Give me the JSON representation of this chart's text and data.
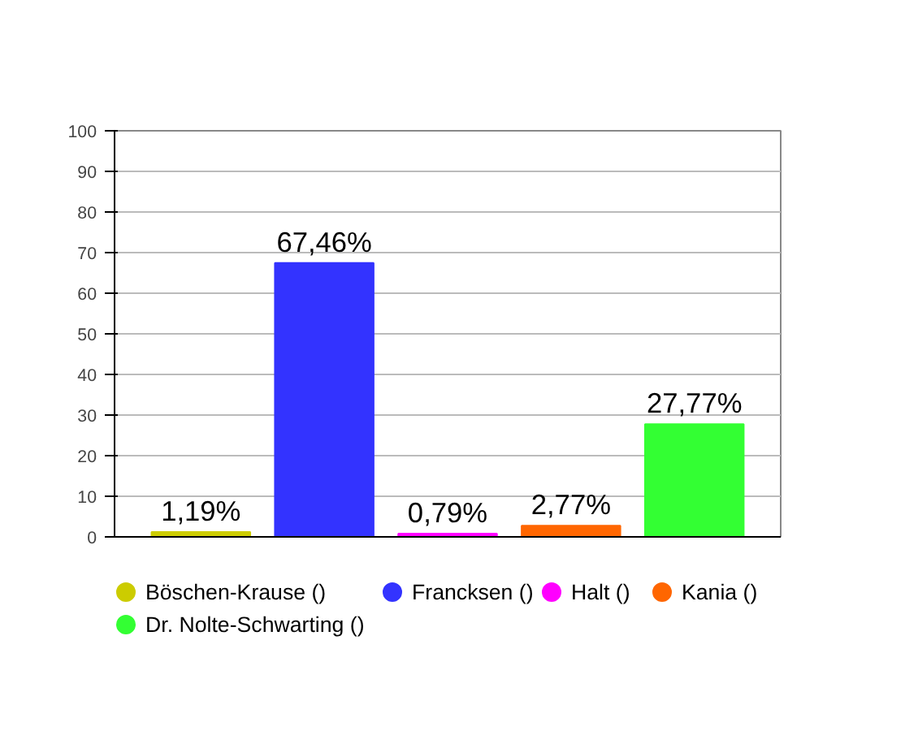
{
  "chart_data": {
    "type": "bar",
    "categories": [
      null,
      null,
      null,
      null,
      null
    ],
    "series": [
      {
        "name": "Böschen-Krause ()",
        "color": "#cccc00",
        "values": [
          1.19,
          null,
          null,
          null,
          null
        ],
        "value_labels": [
          "1,19%",
          null,
          null,
          null,
          null
        ]
      },
      {
        "name": "Francksen ()",
        "color": "#3333ff",
        "values": [
          null,
          67.46,
          null,
          null,
          null
        ],
        "value_labels": [
          null,
          "67,46%",
          null,
          null,
          null
        ]
      },
      {
        "name": "Halt ()",
        "color": "#ff00ff",
        "values": [
          null,
          null,
          0.79,
          null,
          null
        ],
        "value_labels": [
          null,
          null,
          "0,79%",
          null,
          null
        ]
      },
      {
        "name": "Kania ()",
        "color": "#ff6600",
        "values": [
          null,
          null,
          null,
          2.77,
          null
        ],
        "value_labels": [
          null,
          null,
          null,
          "2,77%",
          null
        ]
      },
      {
        "name": "Dr. Nolte-Schwarting ()",
        "color": "#33ff33",
        "values": [
          null,
          null,
          null,
          null,
          27.77
        ],
        "value_labels": [
          null,
          null,
          null,
          null,
          "27,77%"
        ]
      }
    ],
    "ylim": [
      0,
      100
    ],
    "yticks": [
      0,
      10,
      20,
      30,
      40,
      50,
      60,
      70,
      80,
      90,
      100
    ],
    "grid": "y",
    "legend": "bottom"
  }
}
